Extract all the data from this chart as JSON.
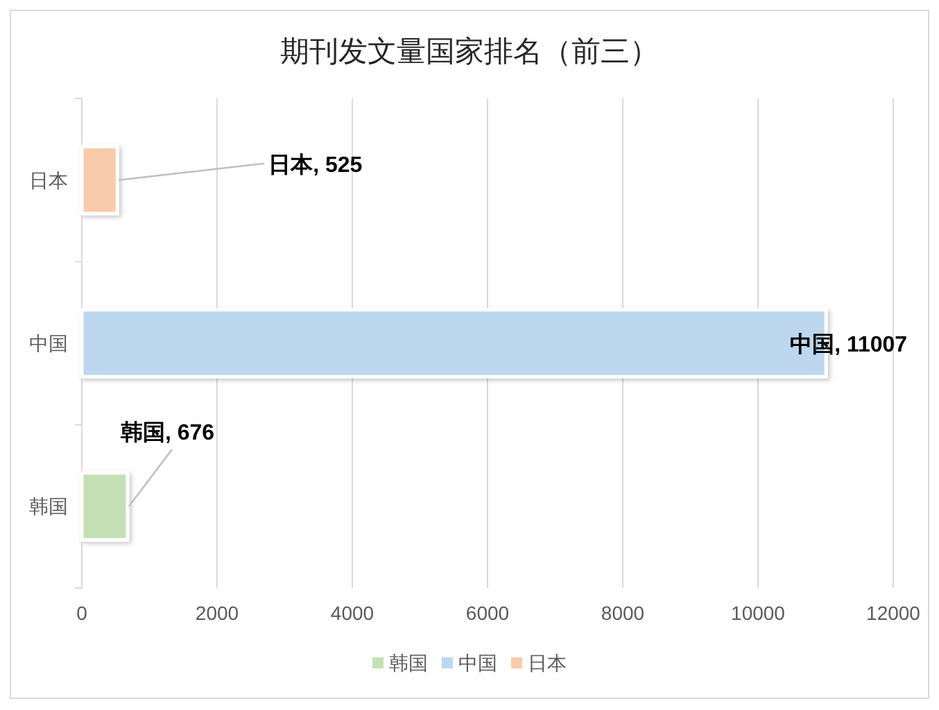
{
  "chart_data": {
    "type": "bar",
    "orientation": "horizontal",
    "title": "期刊发文量国家排名（前三）",
    "categories": [
      "日本",
      "中国",
      "韩国"
    ],
    "series": [
      {
        "name": "韩国",
        "color": "#c5e0b4",
        "values": [
          null,
          null,
          676
        ],
        "value_labels": [
          null,
          null,
          "韩国, 676"
        ]
      },
      {
        "name": "中国",
        "color": "#bdd7ee",
        "values": [
          null,
          11007,
          null
        ],
        "value_labels": [
          null,
          "中国, 11007",
          null
        ]
      },
      {
        "name": "日本",
        "color": "#f8cbad",
        "values": [
          525,
          null,
          null
        ],
        "value_labels": [
          "日本, 525",
          null,
          null
        ]
      }
    ],
    "xlim": [
      0,
      12000
    ],
    "xticks": [
      0,
      2000,
      4000,
      6000,
      8000,
      10000,
      12000
    ],
    "grid": "x",
    "legend": "bottom"
  }
}
